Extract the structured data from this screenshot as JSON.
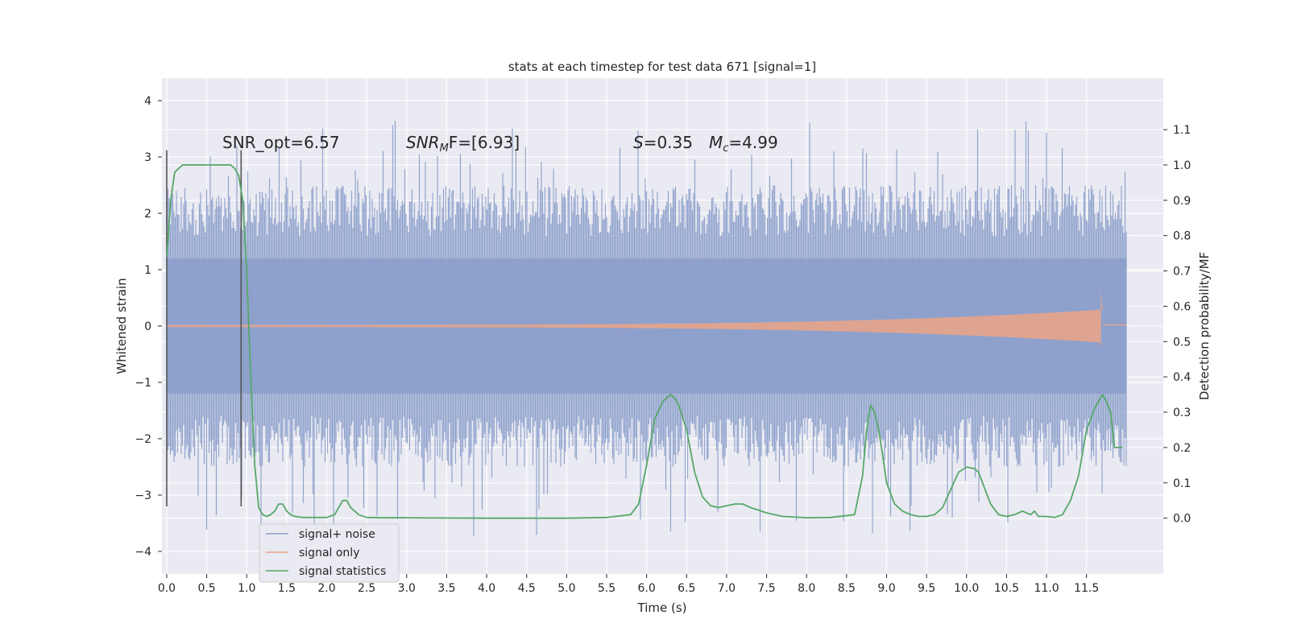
{
  "chart_data": {
    "type": "line",
    "title": "stats at each timestep for test data 671 [signal=1]",
    "xlabel": "Time (s)",
    "ylabel": "Whitened strain",
    "y2label": "Detection probability/MF",
    "xlim": [
      -0.06,
      12.46
    ],
    "ylim": [
      -4.4,
      4.4
    ],
    "y2lim": [
      -0.158,
      1.246
    ],
    "grid": true,
    "legend_position": "lower-left",
    "x_ticks": [
      "0.0",
      "0.5",
      "1.0",
      "1.5",
      "2.0",
      "2.5",
      "3.0",
      "3.5",
      "4.0",
      "4.5",
      "5.0",
      "5.5",
      "6.0",
      "6.5",
      "7.0",
      "7.5",
      "8.0",
      "8.5",
      "9.0",
      "9.5",
      "10.0",
      "10.5",
      "11.0",
      "11.5"
    ],
    "y_ticks": [
      "4",
      "3",
      "2",
      "1",
      "0",
      "−1",
      "−2",
      "−3",
      "−4"
    ],
    "y2_ticks": [
      "1.1",
      "1.0",
      "0.9",
      "0.8",
      "0.7",
      "0.6",
      "0.5",
      "0.4",
      "0.3",
      "0.2",
      "0.1",
      "0.0"
    ],
    "annotations": {
      "snr_opt": "SNR_opt=6.57",
      "snr_mf_main": "SNR",
      "snr_mf_sub": "M",
      "snr_mf_rest": "F=[6.93]",
      "s_var": "S",
      "s_rest": "=0.35",
      "mc_var": "M",
      "mc_sub": "c",
      "mc_rest": "=4.99"
    },
    "vlines": [
      0.0,
      0.93
    ],
    "series": [
      {
        "name": "signal+ noise",
        "color": "#8da0cb",
        "kind": "noise",
        "x_range": [
          0.0,
          12.0
        ],
        "core_amplitude": 1.2,
        "peak_range": [
          -4.1,
          4.0
        ]
      },
      {
        "name": "signal only",
        "color": "#e8a48a",
        "kind": "chirp",
        "x_range": [
          0.0,
          11.7
        ],
        "end_amplitude": 0.65
      },
      {
        "name": "signal statistics",
        "color": "#55a868",
        "kind": "line",
        "x": [
          0.0,
          0.05,
          0.1,
          0.15,
          0.2,
          0.3,
          0.4,
          0.5,
          0.6,
          0.7,
          0.8,
          0.85,
          0.9,
          0.95,
          1.0,
          1.05,
          1.1,
          1.15,
          1.2,
          1.25,
          1.3,
          1.35,
          1.4,
          1.45,
          1.5,
          1.55,
          1.6,
          1.7,
          1.8,
          1.9,
          2.0,
          2.1,
          2.2,
          2.25,
          2.3,
          2.35,
          2.4,
          2.5,
          2.7,
          3.0,
          4.0,
          5.0,
          5.5,
          5.8,
          5.9,
          6.0,
          6.1,
          6.2,
          6.25,
          6.3,
          6.35,
          6.4,
          6.5,
          6.6,
          6.7,
          6.8,
          6.9,
          7.0,
          7.1,
          7.2,
          7.3,
          7.5,
          7.7,
          8.0,
          8.3,
          8.6,
          8.7,
          8.75,
          8.8,
          8.85,
          8.9,
          8.95,
          9.0,
          9.1,
          9.2,
          9.3,
          9.4,
          9.5,
          9.6,
          9.7,
          9.8,
          9.9,
          10.0,
          10.1,
          10.15,
          10.2,
          10.3,
          10.4,
          10.5,
          10.6,
          10.7,
          10.8,
          10.85,
          10.9,
          11.0,
          11.1,
          11.2,
          11.3,
          11.4,
          11.5,
          11.6,
          11.7,
          11.75,
          11.8,
          11.85,
          11.9,
          11.95
        ],
        "y": [
          0.74,
          0.9,
          0.98,
          0.99,
          1.0,
          1.0,
          1.0,
          1.0,
          1.0,
          1.0,
          1.0,
          0.99,
          0.97,
          0.9,
          0.7,
          0.4,
          0.15,
          0.03,
          0.01,
          0.005,
          0.01,
          0.02,
          0.04,
          0.04,
          0.02,
          0.01,
          0.005,
          0.002,
          0.002,
          0.002,
          0.002,
          0.01,
          0.05,
          0.05,
          0.03,
          0.02,
          0.01,
          0.002,
          0.001,
          0.001,
          0.0,
          0.0,
          0.002,
          0.01,
          0.04,
          0.15,
          0.28,
          0.33,
          0.34,
          0.35,
          0.34,
          0.32,
          0.25,
          0.13,
          0.06,
          0.035,
          0.03,
          0.035,
          0.04,
          0.04,
          0.03,
          0.015,
          0.005,
          0.001,
          0.002,
          0.01,
          0.12,
          0.25,
          0.32,
          0.3,
          0.25,
          0.18,
          0.1,
          0.04,
          0.02,
          0.01,
          0.005,
          0.005,
          0.01,
          0.03,
          0.08,
          0.13,
          0.145,
          0.14,
          0.13,
          0.1,
          0.04,
          0.01,
          0.005,
          0.01,
          0.02,
          0.01,
          0.02,
          0.005,
          0.005,
          0.002,
          0.01,
          0.05,
          0.12,
          0.25,
          0.31,
          0.35,
          0.33,
          0.3,
          0.2,
          0.2,
          0.2
        ]
      }
    ]
  }
}
